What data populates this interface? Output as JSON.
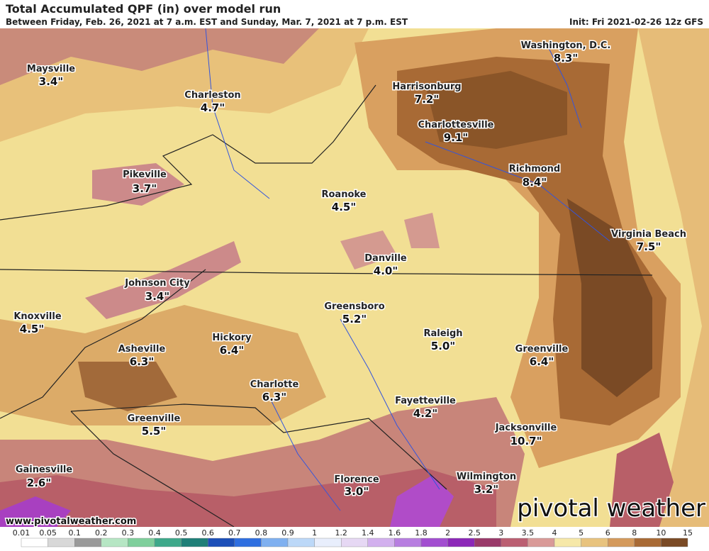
{
  "header": {
    "title": "Total Accumulated QPF (in) over model run",
    "subtitle": "Between Friday, Feb. 26, 2021 at 7 a.m. EST and Sunday, Mar. 7, 2021 at 7 p.m. EST",
    "init": "Init: Fri 2021-02-26 12z GFS"
  },
  "cities": [
    {
      "name": "Maysville",
      "value": "3.4\""
    },
    {
      "name": "Charleston",
      "value": "4.7\""
    },
    {
      "name": "Harrisonburg",
      "value": "7.2\""
    },
    {
      "name": "Washington, D.C.",
      "value": "8.3\""
    },
    {
      "name": "Charlottesville",
      "value": "9.1\""
    },
    {
      "name": "Richmond",
      "value": "8.4\""
    },
    {
      "name": "Pikeville",
      "value": "3.7\""
    },
    {
      "name": "Roanoke",
      "value": "4.5\""
    },
    {
      "name": "Virginia Beach",
      "value": "7.5\""
    },
    {
      "name": "Danville",
      "value": "4.0\""
    },
    {
      "name": "Johnson City",
      "value": "3.4\""
    },
    {
      "name": "Knoxville",
      "value": "4.5\""
    },
    {
      "name": "Greensboro",
      "value": "5.2\""
    },
    {
      "name": "Raleigh",
      "value": "5.0\""
    },
    {
      "name": "Hickory",
      "value": "6.4\""
    },
    {
      "name": "Asheville",
      "value": "6.3\""
    },
    {
      "name": "Greenville",
      "value": "6.4\""
    },
    {
      "name": "Charlotte",
      "value": "6.3\""
    },
    {
      "name": "Fayetteville",
      "value": "4.2\""
    },
    {
      "name": "Greenville",
      "value": "5.5\""
    },
    {
      "name": "Jacksonville",
      "value": "10.7\""
    },
    {
      "name": "Gainesville",
      "value": "2.6\""
    },
    {
      "name": "Wilmington",
      "value": "3.2\""
    },
    {
      "name": "Florence",
      "value": "3.0\""
    }
  ],
  "footer": {
    "watermark": "www.pivotalweather.com",
    "logo": "pivotal weather"
  },
  "legend": {
    "labels": [
      "0.01",
      "0.05",
      "0.1",
      "0.2",
      "0.3",
      "0.4",
      "0.5",
      "0.6",
      "0.7",
      "0.8",
      "0.9",
      "1",
      "1.2",
      "1.4",
      "1.6",
      "1.8",
      "2",
      "2.5",
      "3",
      "3.5",
      "4",
      "5",
      "6",
      "8",
      "10",
      "15"
    ],
    "colors": [
      "#ffffff",
      "#d8d8d8",
      "#9a9a9a",
      "#b6e6c4",
      "#7fcf9c",
      "#3ea88a",
      "#1f7f78",
      "#1c4fb8",
      "#2f6fe0",
      "#7fb0f0",
      "#bcd8f8",
      "#e8eefc",
      "#e6d8f4",
      "#d2b0ee",
      "#b77ee0",
      "#a24ed0",
      "#8c28b8",
      "#9a3a6a",
      "#bb5f72",
      "#d99a98",
      "#f6e8a8",
      "#e8c37e",
      "#d49a5c",
      "#a86a35",
      "#7a4a25",
      "#4a2a12"
    ]
  }
}
